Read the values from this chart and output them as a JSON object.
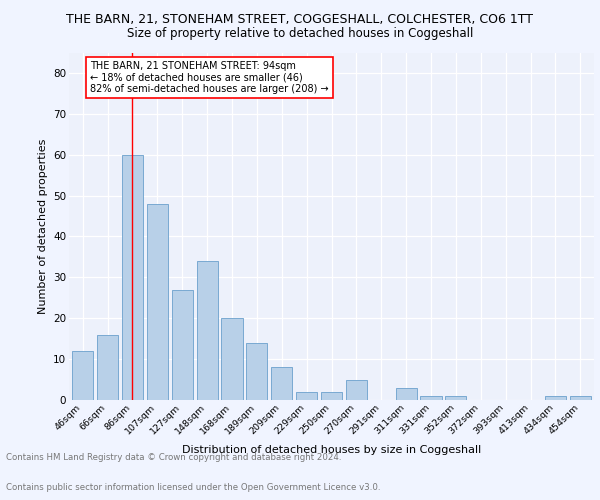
{
  "title1": "THE BARN, 21, STONEHAM STREET, COGGESHALL, COLCHESTER, CO6 1TT",
  "title2": "Size of property relative to detached houses in Coggeshall",
  "xlabel": "Distribution of detached houses by size in Coggeshall",
  "ylabel": "Number of detached properties",
  "categories": [
    "46sqm",
    "66sqm",
    "86sqm",
    "107sqm",
    "127sqm",
    "148sqm",
    "168sqm",
    "189sqm",
    "209sqm",
    "229sqm",
    "250sqm",
    "270sqm",
    "291sqm",
    "311sqm",
    "331sqm",
    "352sqm",
    "372sqm",
    "393sqm",
    "413sqm",
    "434sqm",
    "454sqm"
  ],
  "values": [
    12,
    16,
    60,
    48,
    27,
    34,
    20,
    14,
    8,
    2,
    2,
    5,
    0,
    3,
    1,
    1,
    0,
    0,
    0,
    1,
    1
  ],
  "bar_color": "#b8d0e8",
  "bar_edge_color": "#6aa0cc",
  "red_line_index": 2,
  "annotation_title": "THE BARN, 21 STONEHAM STREET: 94sqm",
  "annotation_line2": "← 18% of detached houses are smaller (46)",
  "annotation_line3": "82% of semi-detached houses are larger (208) →",
  "ylim": [
    0,
    85
  ],
  "yticks": [
    0,
    10,
    20,
    30,
    40,
    50,
    60,
    70,
    80
  ],
  "footer1": "Contains HM Land Registry data © Crown copyright and database right 2024.",
  "footer2": "Contains public sector information licensed under the Open Government Licence v3.0.",
  "background_color": "#f0f4ff",
  "plot_background": "#edf1fb",
  "title1_fontsize": 9,
  "title2_fontsize": 8.5,
  "ann_fontsize": 7,
  "footer_fontsize": 6.2
}
